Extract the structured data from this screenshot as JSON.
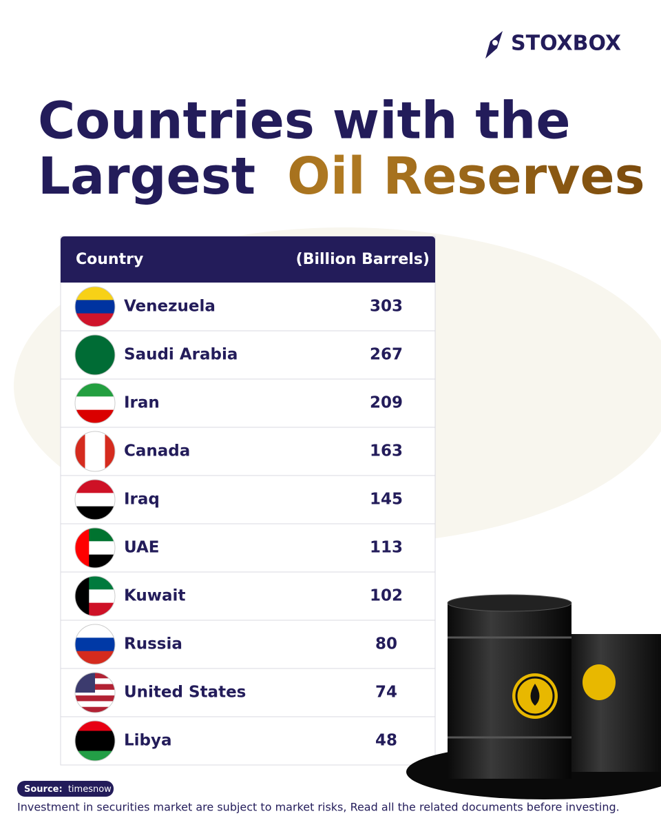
{
  "brand": "STOXBOX",
  "title": {
    "line1": "Countries with the",
    "line2_plain": "Largest",
    "line2_highlight": "Oil Reserves"
  },
  "table": {
    "header": [
      "Country",
      "(Billion Barrels)"
    ],
    "rows": [
      [
        "Venezuela",
        303
      ],
      [
        "Saudi Arabia",
        267
      ],
      [
        "Iran",
        209
      ],
      [
        "Canada",
        163
      ],
      [
        "Iraq",
        145
      ],
      [
        "UAE",
        113
      ],
      [
        "Kuwait",
        102
      ],
      [
        "Russia",
        80
      ],
      [
        "United States",
        74
      ],
      [
        "Libya",
        48
      ]
    ]
  },
  "source": {
    "label": "Source:",
    "value": "timesnow"
  },
  "disclaimer": "Investment in securities market are subject to market risks, Read all the related documents before investing."
}
